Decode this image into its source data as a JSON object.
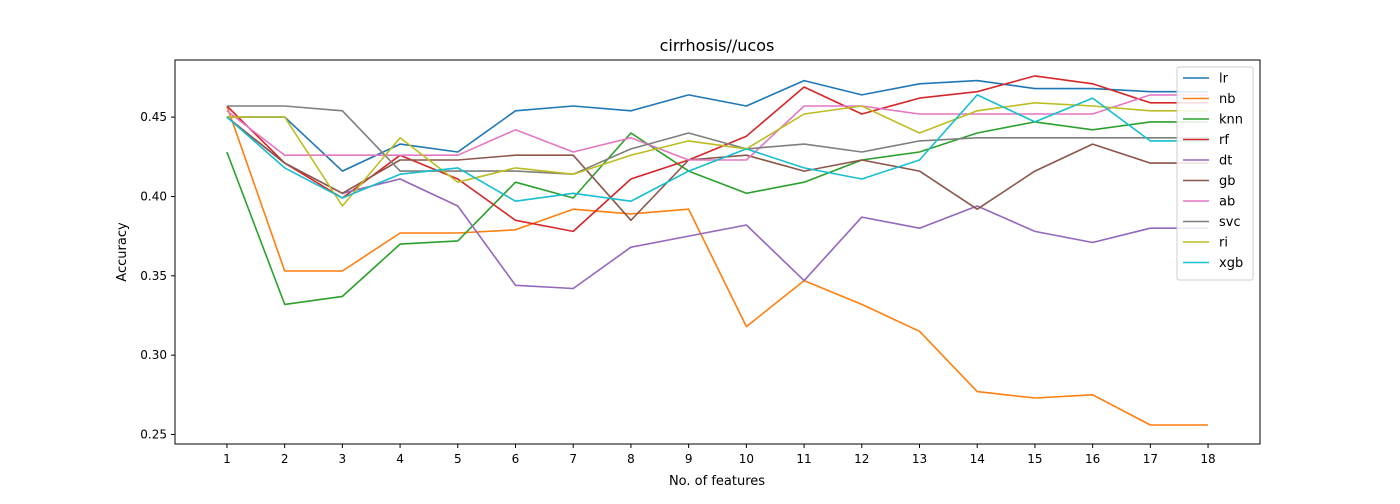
{
  "chart_data": {
    "type": "line",
    "title": "cirrhosis//ucos",
    "xlabel": "No. of features",
    "ylabel": "Accuracy",
    "x": [
      1,
      2,
      3,
      4,
      5,
      6,
      7,
      8,
      9,
      10,
      11,
      12,
      13,
      14,
      15,
      16,
      17,
      18
    ],
    "xlim": [
      0.1,
      18.9
    ],
    "ylim": [
      0.244,
      0.486
    ],
    "yticks": [
      0.25,
      0.3,
      0.35,
      0.4,
      0.45
    ],
    "ytick_labels": [
      "0.25",
      "0.30",
      "0.35",
      "0.40",
      "0.45"
    ],
    "xtick_labels": [
      "1",
      "2",
      "3",
      "4",
      "5",
      "6",
      "7",
      "8",
      "9",
      "10",
      "11",
      "12",
      "13",
      "14",
      "15",
      "16",
      "17",
      "18"
    ],
    "grid": false,
    "legend_position": "upper right",
    "series": [
      {
        "name": "lr",
        "color": "#1f77b4",
        "values": [
          0.45,
          0.45,
          0.416,
          0.433,
          0.428,
          0.454,
          0.457,
          0.454,
          0.464,
          0.457,
          0.473,
          0.464,
          0.471,
          0.473,
          0.468,
          0.468,
          0.466,
          0.466
        ]
      },
      {
        "name": "nb",
        "color": "#ff7f0e",
        "values": [
          0.457,
          0.353,
          0.353,
          0.377,
          0.377,
          0.379,
          0.392,
          0.389,
          0.392,
          0.318,
          0.347,
          0.332,
          0.315,
          0.277,
          0.273,
          0.275,
          0.256,
          0.256
        ]
      },
      {
        "name": "knn",
        "color": "#2ca02c",
        "values": [
          0.428,
          0.332,
          0.337,
          0.37,
          0.372,
          0.409,
          0.399,
          0.44,
          0.416,
          0.402,
          0.409,
          0.423,
          0.428,
          0.44,
          0.447,
          0.442,
          0.447,
          0.447
        ]
      },
      {
        "name": "rf",
        "color": "#d62728",
        "values": [
          0.457,
          0.421,
          0.399,
          0.426,
          0.411,
          0.385,
          0.378,
          0.411,
          0.423,
          0.438,
          0.469,
          0.452,
          0.462,
          0.466,
          0.476,
          0.471,
          0.459,
          0.459
        ]
      },
      {
        "name": "dt",
        "color": "#9467bd",
        "values": [
          0.45,
          0.421,
          0.402,
          0.411,
          0.394,
          0.344,
          0.342,
          0.368,
          0.375,
          0.382,
          0.347,
          0.387,
          0.38,
          0.394,
          0.378,
          0.371,
          0.38,
          0.38
        ]
      },
      {
        "name": "gb",
        "color": "#8c564b",
        "values": [
          0.45,
          0.421,
          0.402,
          0.423,
          0.423,
          0.426,
          0.426,
          0.385,
          0.423,
          0.426,
          0.416,
          0.423,
          0.416,
          0.392,
          0.416,
          0.433,
          0.421,
          0.421
        ]
      },
      {
        "name": "ab",
        "color": "#e377c2",
        "values": [
          0.454,
          0.426,
          0.426,
          0.426,
          0.426,
          0.442,
          0.428,
          0.437,
          0.423,
          0.423,
          0.457,
          0.457,
          0.452,
          0.452,
          0.452,
          0.452,
          0.464,
          0.464
        ]
      },
      {
        "name": "svc",
        "color": "#7f7f7f",
        "values": [
          0.457,
          0.457,
          0.454,
          0.416,
          0.416,
          0.416,
          0.414,
          0.43,
          0.44,
          0.43,
          0.433,
          0.428,
          0.435,
          0.437,
          0.437,
          0.437,
          0.437,
          0.437
        ]
      },
      {
        "name": "ri",
        "color": "#bcbd22",
        "values": [
          0.45,
          0.45,
          0.394,
          0.437,
          0.409,
          0.418,
          0.414,
          0.426,
          0.435,
          0.43,
          0.452,
          0.457,
          0.44,
          0.454,
          0.459,
          0.457,
          0.454,
          0.454
        ]
      },
      {
        "name": "xgb",
        "color": "#17becf",
        "values": [
          0.45,
          0.418,
          0.399,
          0.414,
          0.418,
          0.397,
          0.402,
          0.397,
          0.416,
          0.43,
          0.418,
          0.411,
          0.423,
          0.464,
          0.447,
          0.462,
          0.435,
          0.435
        ]
      }
    ]
  }
}
